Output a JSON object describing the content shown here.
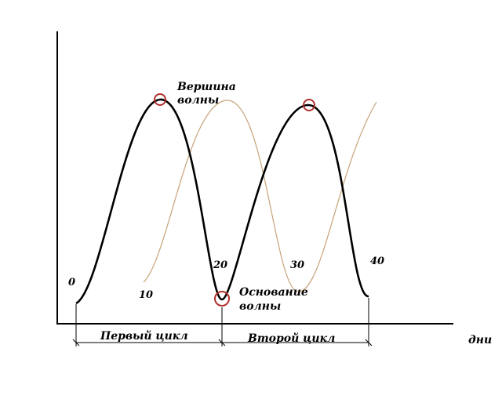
{
  "labels": {
    "peak_line1": "Вершина",
    "peak_line2": "волны",
    "trough_line1": "Основание",
    "trough_line2": "волны",
    "cycle_first": "Первый цикл",
    "cycle_second": "Второй цикл",
    "x_unit": "дни"
  },
  "ticks": [
    "0",
    "10",
    "20",
    "30",
    "40"
  ],
  "colors": {
    "axis": "#000000",
    "main_wave": "#000000",
    "shifted_wave": "#c8a27a",
    "markers": "#b0302e"
  }
}
